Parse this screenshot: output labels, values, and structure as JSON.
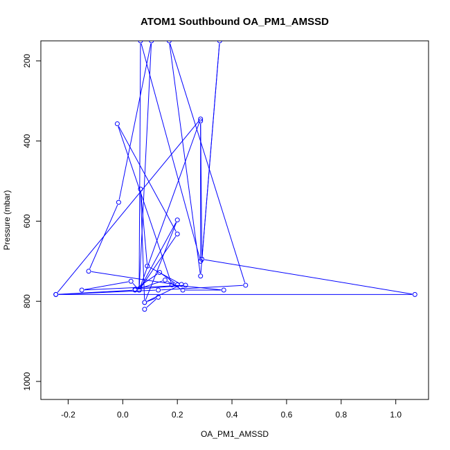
{
  "chart_data": {
    "type": "line",
    "title": "ATOM1 Southbound OA_PM1_AMSSD",
    "xlabel": "OA_PM1_AMSSD",
    "ylabel": "Pressure (mbar)",
    "xlim": [
      -0.3,
      1.12
    ],
    "ylim": [
      1045,
      150
    ],
    "y_reversed": true,
    "x_ticks": [
      -0.2,
      0.0,
      0.2,
      0.4,
      0.6,
      0.8,
      1.0
    ],
    "x_tick_labels": [
      "-0.2",
      "0.0",
      "0.2",
      "0.4",
      "0.6",
      "0.8",
      "1.0"
    ],
    "y_ticks": [
      200,
      400,
      600,
      800,
      1000
    ],
    "y_tick_labels": [
      "200",
      "400",
      "600",
      "800",
      "1000"
    ],
    "grid": false,
    "series": [
      {
        "color": "#0000ff",
        "marker": "open-circle",
        "points": [
          {
            "x": 0.08,
            "y": 820
          },
          {
            "x": 0.13,
            "y": 790
          },
          {
            "x": 0.08,
            "y": 803
          },
          {
            "x": 0.215,
            "y": 758
          },
          {
            "x": 0.09,
            "y": 712
          },
          {
            "x": 0.065,
            "y": 520
          },
          {
            "x": 0.08,
            "y": 803
          },
          {
            "x": 0.2,
            "y": 597
          },
          {
            "x": 0.06,
            "y": 772
          },
          {
            "x": 0.2,
            "y": 632
          },
          {
            "x": -0.02,
            "y": 357
          },
          {
            "x": 0.18,
            "y": 759
          },
          {
            "x": 0.37,
            "y": 772
          },
          {
            "x": 0.22,
            "y": 772
          },
          {
            "x": 0.155,
            "y": 747
          },
          {
            "x": 0.045,
            "y": 772
          },
          {
            "x": -0.245,
            "y": 783
          },
          {
            "x": 0.285,
            "y": 345
          },
          {
            "x": 0.06,
            "y": 772
          },
          {
            "x": 0.03,
            "y": 750
          },
          {
            "x": -0.15,
            "y": 772
          },
          {
            "x": 0.23,
            "y": 760
          },
          {
            "x": 0.045,
            "y": 770
          },
          {
            "x": 0.135,
            "y": 728
          },
          {
            "x": 0.2,
            "y": 759
          },
          {
            "x": -0.125,
            "y": 725
          },
          {
            "x": -0.015,
            "y": 553
          },
          {
            "x": 0.105,
            "y": 150
          },
          {
            "x": 0.06,
            "y": 772
          },
          {
            "x": 0.065,
            "y": 150
          },
          {
            "x": 0.285,
            "y": 700
          },
          {
            "x": 0.285,
            "y": 350
          },
          {
            "x": 0.29,
            "y": 695
          },
          {
            "x": 0.355,
            "y": 150
          },
          {
            "x": 0.285,
            "y": 737
          },
          {
            "x": 0.17,
            "y": 150
          },
          {
            "x": 0.45,
            "y": 760
          },
          {
            "x": 0.13,
            "y": 772
          },
          {
            "x": -0.245,
            "y": 783
          },
          {
            "x": 1.07,
            "y": 783
          },
          {
            "x": 0.29,
            "y": 695
          }
        ]
      }
    ]
  }
}
